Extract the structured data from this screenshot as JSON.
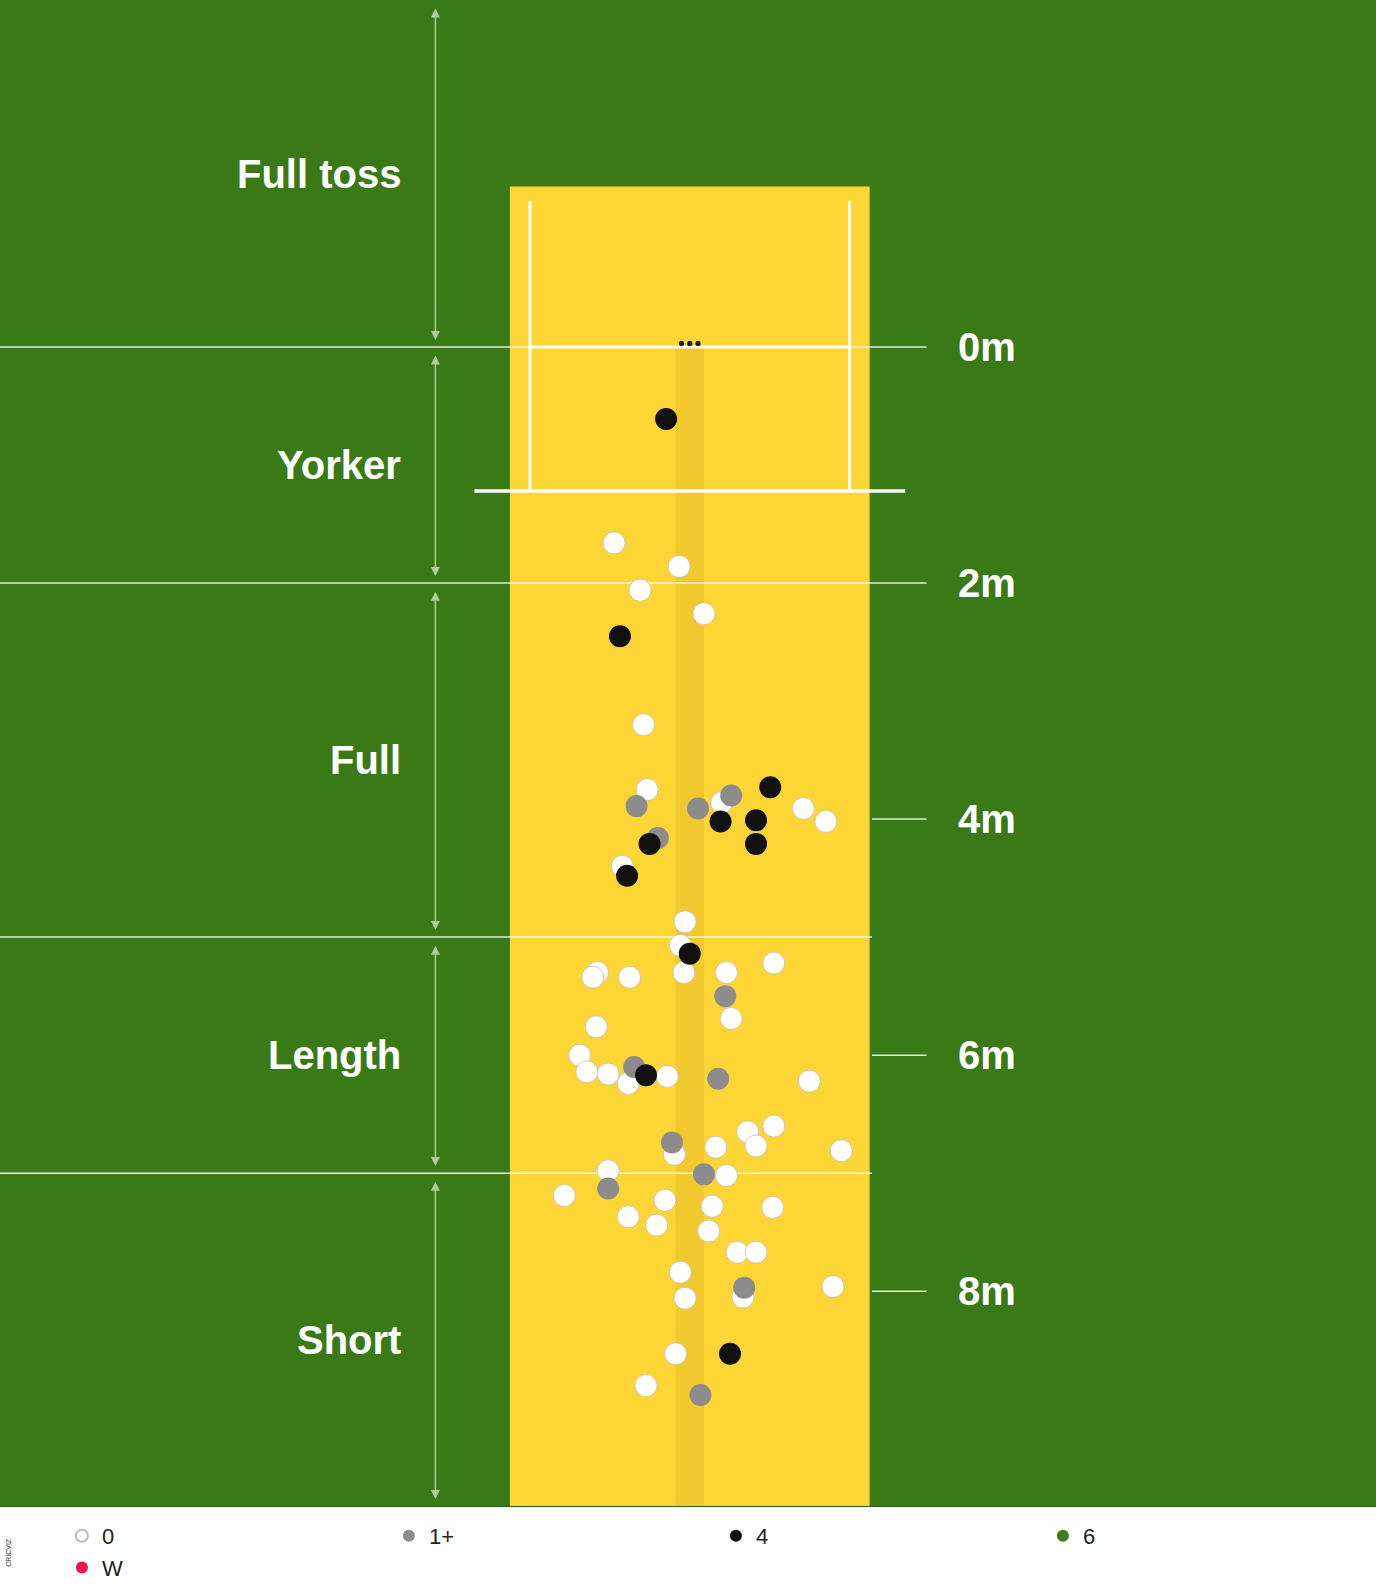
{
  "chart_data": {
    "type": "scatter",
    "source": "CRICVIZ",
    "zones": [
      "Full toss",
      "Yorker",
      "Full",
      "Length",
      "Short"
    ],
    "zone_edges": [
      0,
      2,
      5,
      7
    ],
    "xlim": [
      -5.83,
      5.8
    ],
    "ylim": [
      9.82,
      -2.94
    ],
    "yticks": [
      {
        "value": 0,
        "label": "0m"
      },
      {
        "value": 2,
        "label": "2m"
      },
      {
        "value": 4,
        "label": "4m"
      },
      {
        "value": 6,
        "label": "6m"
      },
      {
        "value": 8,
        "label": "8m"
      }
    ],
    "tick_labels": "y",
    "grid": false,
    "legend": "bottom",
    "series": [
      {
        "name": "0",
        "color": "#ffffff",
        "x": [
          -0.64,
          -0.09,
          -0.42,
          0.12,
          -0.39,
          -0.36,
          0.96,
          1.15,
          -0.57,
          0.27,
          -0.04,
          -0.08,
          0.71,
          -0.78,
          -0.82,
          -0.51,
          -0.05,
          0.31,
          0.35,
          -0.79,
          -0.93,
          -0.87,
          -0.69,
          -0.52,
          -0.19,
          1.01,
          0.71,
          0.49,
          0.56,
          1.28,
          0.22,
          -0.13,
          -0.69,
          0.31,
          -1.06,
          -0.21,
          -0.52,
          -0.28,
          0.19,
          0.7,
          0.16,
          0.4,
          0.56,
          -0.08,
          -0.04,
          0.45,
          1.21,
          -0.12,
          -0.37
        ],
        "y": [
          1.66,
          1.86,
          2.06,
          2.26,
          3.2,
          3.75,
          3.91,
          4.02,
          4.4,
          3.86,
          4.87,
          5.07,
          5.22,
          5.3,
          5.34,
          5.34,
          5.3,
          5.3,
          5.69,
          5.76,
          6.0,
          6.14,
          6.16,
          6.24,
          6.18,
          6.22,
          6.6,
          6.65,
          6.77,
          6.81,
          6.78,
          6.84,
          6.98,
          7.02,
          7.19,
          7.23,
          7.37,
          7.44,
          7.28,
          7.29,
          7.49,
          7.67,
          7.67,
          7.84,
          8.06,
          8.05,
          7.96,
          8.53,
          8.8
        ]
      },
      {
        "name": "1+",
        "color": "#8c8c8c",
        "x": [
          -0.45,
          0.07,
          0.35,
          -0.27,
          0.3,
          -0.47,
          0.24,
          -0.15,
          0.12,
          -0.69,
          0.46,
          0.09
        ],
        "y": [
          3.89,
          3.91,
          3.8,
          4.16,
          5.5,
          6.1,
          6.2,
          6.74,
          7.01,
          7.13,
          7.97,
          8.88
        ]
      },
      {
        "name": "4",
        "color": "#111111",
        "x": [
          -0.2,
          -0.59,
          0.68,
          0.26,
          0.56,
          0.56,
          -0.34,
          -0.53,
          0.0,
          -0.37,
          0.34
        ],
        "y": [
          0.61,
          2.45,
          3.73,
          4.02,
          4.01,
          4.21,
          4.21,
          4.48,
          5.14,
          6.17,
          8.53
        ]
      },
      {
        "name": "6",
        "color": "#3b7d17",
        "x": [],
        "y": []
      },
      {
        "name": "W",
        "color": "#e8174e",
        "x": [],
        "y": []
      }
    ]
  }
}
